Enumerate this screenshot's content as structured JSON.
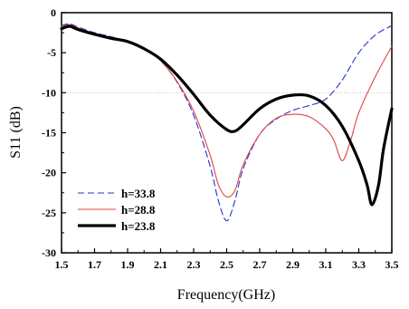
{
  "chart_data": {
    "type": "line",
    "title": "",
    "xlabel": "Frequency(GHz)",
    "ylabel": "S11 (dB)",
    "xlim": [
      1.5,
      3.5
    ],
    "ylim": [
      -30,
      0
    ],
    "xticks": [
      "1.5",
      "1.7",
      "1.9",
      "2.1",
      "2.3",
      "2.5",
      "2.7",
      "2.9",
      "3.1",
      "3.3",
      "3.5"
    ],
    "yticks": [
      "0",
      "-5",
      "-10",
      "-15",
      "-20",
      "-25",
      "-30"
    ],
    "reference_line": {
      "y": -10,
      "style": "dotted",
      "color": "#c8c8c8"
    },
    "legend_position": "bottom-left",
    "grid": false,
    "series": [
      {
        "name": "h=33.8",
        "color": "#2233cc",
        "dash": "dashed",
        "weight": "thin",
        "x": [
          1.5,
          1.55,
          1.6,
          1.7,
          1.8,
          1.9,
          2.0,
          2.1,
          2.2,
          2.3,
          2.4,
          2.45,
          2.5,
          2.55,
          2.6,
          2.7,
          2.8,
          2.9,
          3.0,
          3.1,
          3.2,
          3.3,
          3.4,
          3.5
        ],
        "y": [
          -1.6,
          -1.4,
          -1.8,
          -2.5,
          -3.0,
          -3.6,
          -4.5,
          -6.0,
          -8.7,
          -12.8,
          -19.2,
          -23.5,
          -26.0,
          -23.5,
          -19.5,
          -15.2,
          -13.3,
          -12.2,
          -11.6,
          -10.8,
          -8.4,
          -5.0,
          -2.8,
          -1.6
        ]
      },
      {
        "name": "h=28.8",
        "color": "#e04444",
        "dash": "solid",
        "weight": "thin",
        "x": [
          1.5,
          1.55,
          1.6,
          1.7,
          1.8,
          1.9,
          2.0,
          2.1,
          2.2,
          2.3,
          2.4,
          2.45,
          2.5,
          2.55,
          2.6,
          2.7,
          2.8,
          2.9,
          3.0,
          3.1,
          3.15,
          3.2,
          3.25,
          3.3,
          3.4,
          3.5
        ],
        "y": [
          -1.7,
          -1.5,
          -1.9,
          -2.6,
          -3.1,
          -3.7,
          -4.6,
          -6.0,
          -8.6,
          -12.3,
          -17.8,
          -21.5,
          -23.0,
          -22.2,
          -19.0,
          -15.2,
          -13.2,
          -12.7,
          -13.0,
          -14.5,
          -16.0,
          -18.5,
          -16.0,
          -12.5,
          -8.0,
          -4.2
        ]
      },
      {
        "name": "h=23.8",
        "color": "#000000",
        "dash": "solid",
        "weight": "thick",
        "x": [
          1.5,
          1.55,
          1.6,
          1.7,
          1.8,
          1.9,
          2.0,
          2.1,
          2.2,
          2.3,
          2.4,
          2.5,
          2.55,
          2.6,
          2.7,
          2.8,
          2.9,
          3.0,
          3.1,
          3.2,
          3.3,
          3.35,
          3.38,
          3.42,
          3.45,
          3.5
        ],
        "y": [
          -2.0,
          -1.7,
          -2.1,
          -2.7,
          -3.2,
          -3.6,
          -4.5,
          -5.8,
          -7.8,
          -10.2,
          -12.8,
          -14.6,
          -14.8,
          -14.0,
          -12.0,
          -10.8,
          -10.3,
          -10.4,
          -11.6,
          -14.2,
          -18.5,
          -21.5,
          -24.0,
          -21.5,
          -17.0,
          -12.0
        ]
      }
    ]
  }
}
